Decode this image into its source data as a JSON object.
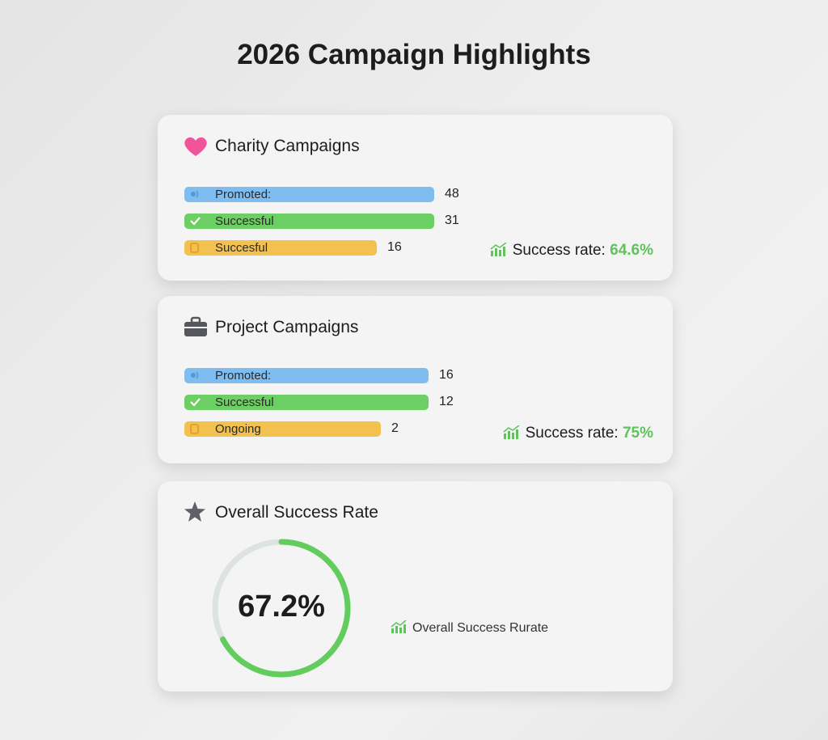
{
  "title": "2026 Campaign Highlights",
  "cards": [
    {
      "title": "Charity Campaigns",
      "rows": [
        {
          "label": "Promoted:",
          "value": 48
        },
        {
          "label": "Successful",
          "value": 31
        },
        {
          "label": "Succesful",
          "value": 16
        }
      ],
      "rate_label": "Success rate:",
      "rate": "64.6%"
    },
    {
      "title": "Project Campaigns",
      "rows": [
        {
          "label": "Promoted:",
          "value": 16
        },
        {
          "label": "Successful",
          "value": 12
        },
        {
          "label": "Ongoing",
          "value": 2
        }
      ],
      "rate_label": "Success rate:",
      "rate": "75%"
    }
  ],
  "overall": {
    "title": "Overall Success Rate",
    "value": 67.2,
    "value_label": "67.2%",
    "caption": "Overall Success Rurate"
  }
}
